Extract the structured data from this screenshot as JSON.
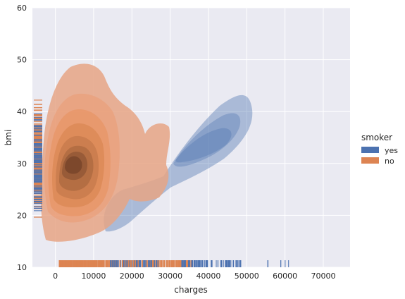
{
  "chart_data": {
    "type": "kde",
    "xlabel": "charges",
    "ylabel": "bmi",
    "xlim": [
      -6000,
      77000
    ],
    "ylim": [
      10,
      60
    ],
    "xticks": [
      0,
      10000,
      20000,
      30000,
      40000,
      50000,
      60000,
      70000
    ],
    "yticks": [
      10,
      20,
      30,
      40,
      50,
      60
    ],
    "grid": true,
    "background": "#eaeaf2",
    "legend": {
      "title": "smoker",
      "placement": "right"
    },
    "series": [
      {
        "name": "yes",
        "color": "#4c72b0",
        "density_peak": {
          "charges": 39500,
          "bmi": 35
        },
        "outer_contour_extent": {
          "charges": [
            14000,
            53000
          ],
          "bmi": [
            16,
            44
          ]
        },
        "rug_charges_range": [
          13000,
          64000
        ]
      },
      {
        "name": "no",
        "color": "#dd8452",
        "density_peak": {
          "charges": 5000,
          "bmi": 30
        },
        "outer_contour_extent": {
          "charges": [
            -2000,
            30000
          ],
          "bmi": [
            15,
            49
          ]
        },
        "rug_charges_range": [
          1000,
          36000
        ]
      }
    ]
  }
}
